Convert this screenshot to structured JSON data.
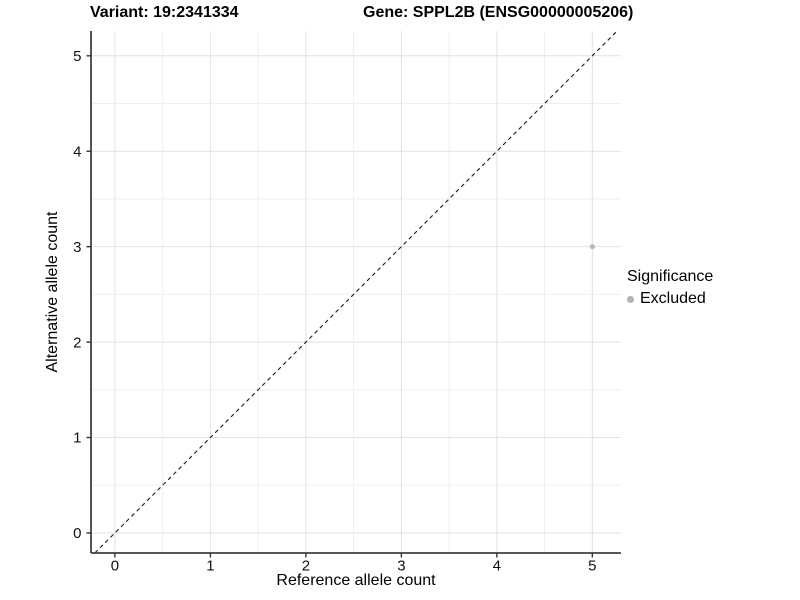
{
  "header": {
    "variant_title": "Variant: 19:2341334",
    "gene_title": "Gene: SPPL2B (ENSG00000005206)"
  },
  "chart_data": {
    "type": "scatter",
    "title_left": "Variant: 19:2341334",
    "title_right": "Gene: SPPL2B (ENSG00000005206)",
    "xlabel": "Reference allele count",
    "ylabel": "Alternative allele count",
    "x_ticks": [
      0,
      1,
      2,
      3,
      4,
      5
    ],
    "y_ticks": [
      0,
      1,
      2,
      3,
      4,
      5
    ],
    "xlim": [
      -0.25,
      5.3
    ],
    "ylim": [
      -0.21,
      5.26
    ],
    "grid": "major-and-minor",
    "reference_line": {
      "type": "identity-y-equals-x",
      "style": "dashed",
      "color": "#1a1a1a"
    },
    "series": [
      {
        "name": "Excluded",
        "color": "#b8b8b8",
        "points": [
          {
            "x": 5,
            "y": 3
          }
        ]
      }
    ],
    "legend": {
      "title": "Significance",
      "position": "right",
      "items": [
        {
          "label": "Excluded",
          "color": "#b3b3b3"
        }
      ]
    },
    "colors": {
      "background": "#ffffff",
      "grid_major": "#e2e2e2",
      "grid_minor": "#efefef",
      "axis_line": "#404040",
      "tick": "#333333",
      "tick_label": "#111111"
    }
  }
}
